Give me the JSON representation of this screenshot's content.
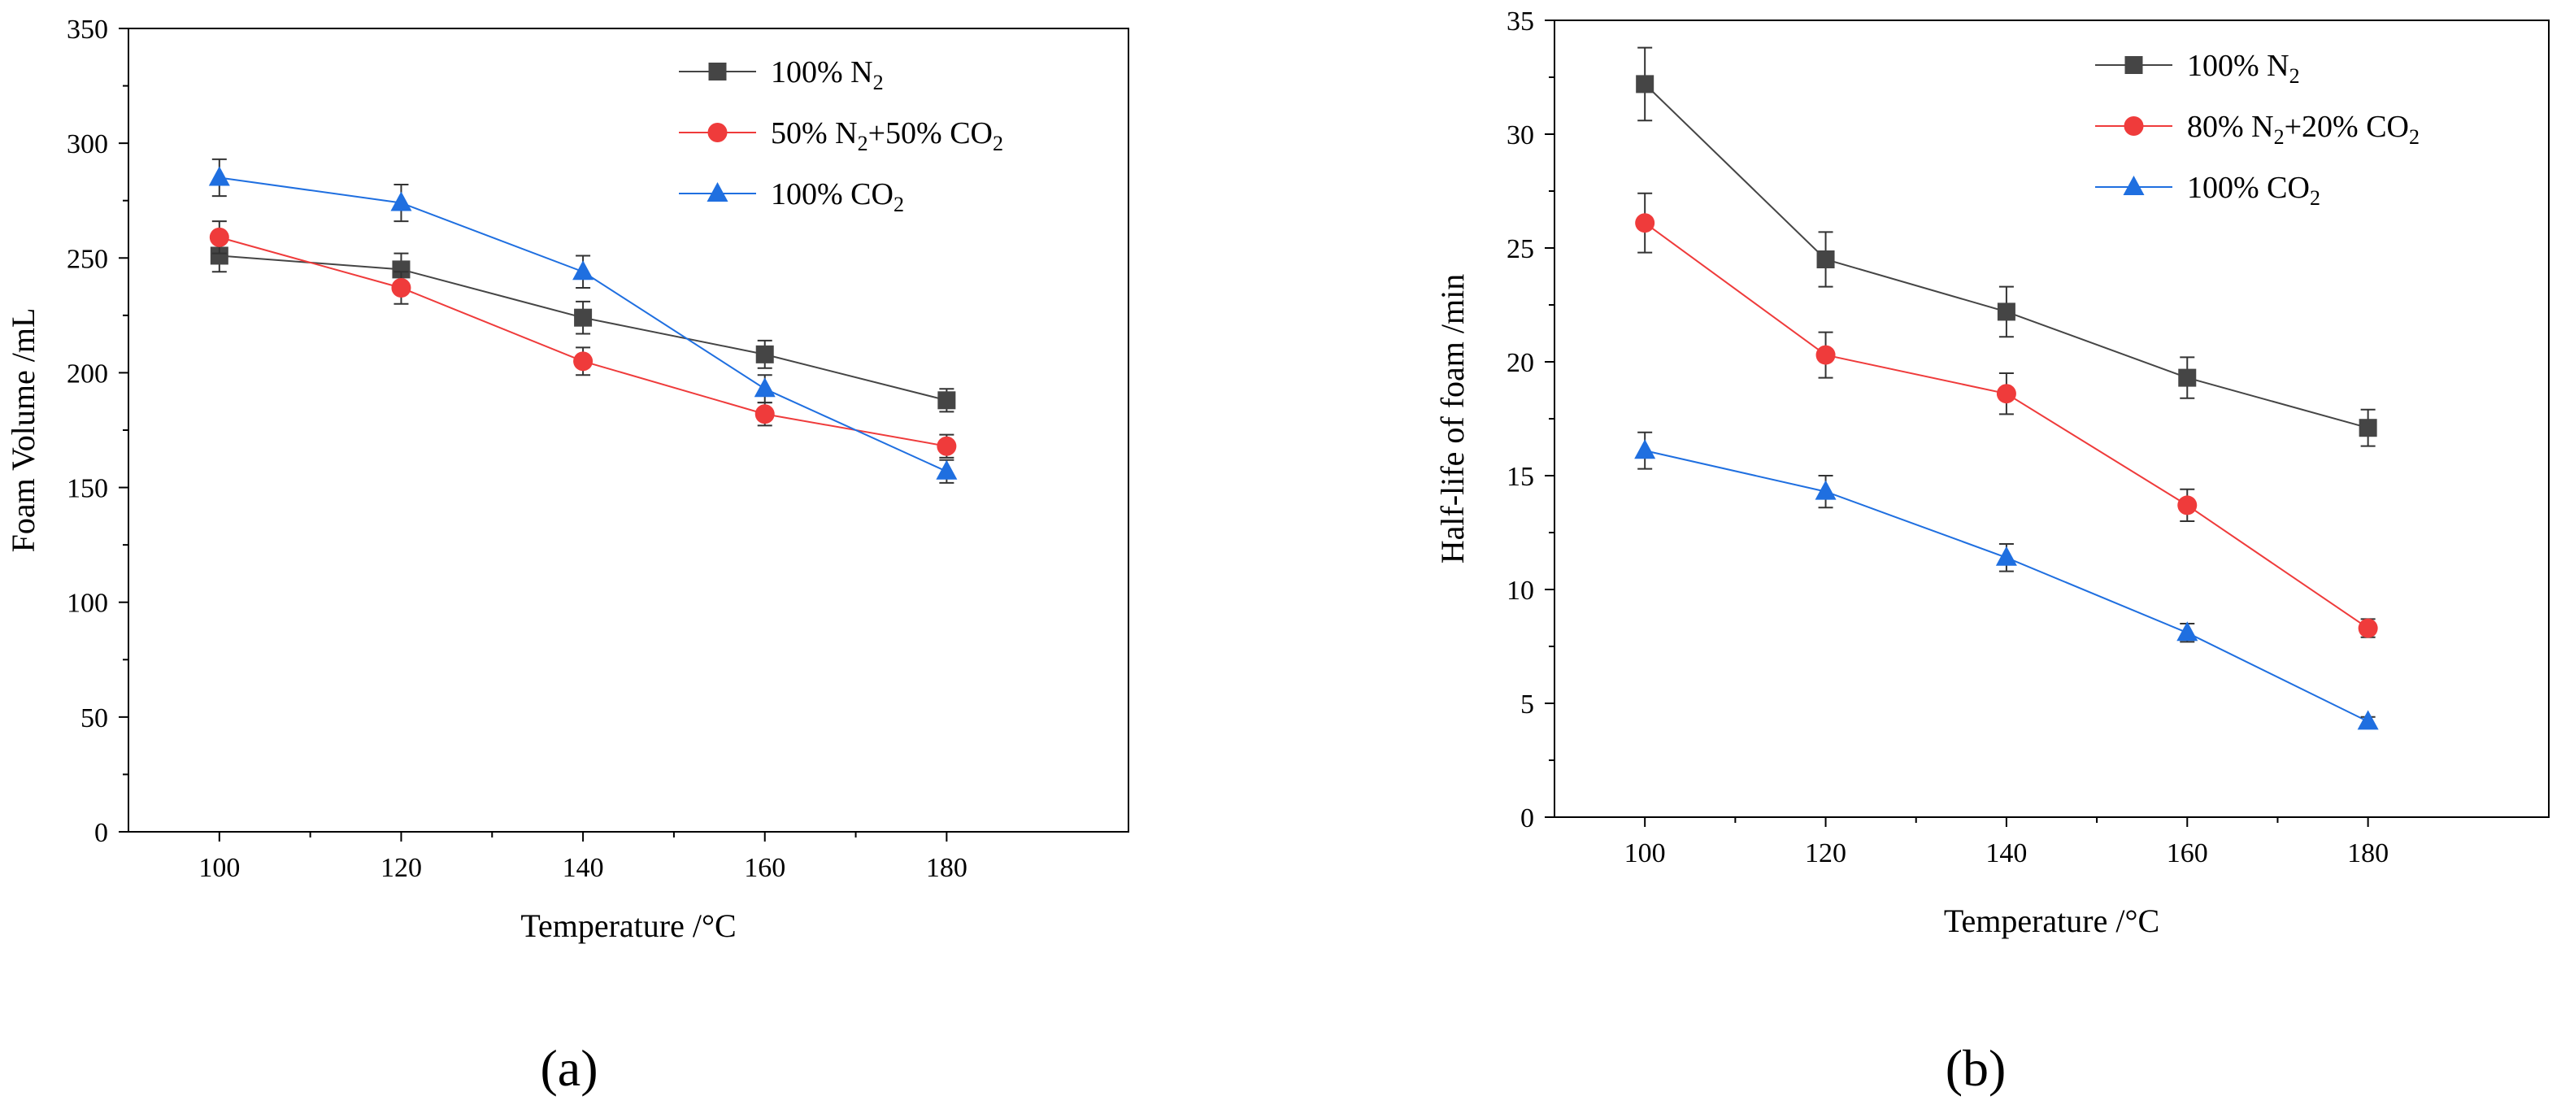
{
  "figure": {
    "panels": [
      {
        "label": "(a)"
      },
      {
        "label": "(b)"
      }
    ]
  },
  "chart_data": [
    {
      "type": "line",
      "panel": "(a)",
      "title": "",
      "xlabel": "Temperature /°C",
      "ylabel": "Foam Volume /mL",
      "xlim": [
        90,
        200
      ],
      "ylim": [
        0,
        350
      ],
      "xticks": [
        100,
        120,
        140,
        160,
        180
      ],
      "yticks": [
        0,
        50,
        100,
        150,
        200,
        250,
        300,
        350
      ],
      "x": [
        100,
        120,
        140,
        160,
        180
      ],
      "legend_position": "top-right",
      "series": [
        {
          "name": "100% N₂",
          "label_parts": [
            [
              "100% N",
              "normal"
            ],
            [
              "2",
              "sub"
            ]
          ],
          "color": "#454545",
          "marker": "square",
          "values": [
            251,
            245,
            224,
            208,
            188
          ],
          "errors": [
            7,
            7,
            7,
            6,
            5
          ]
        },
        {
          "name": "50% N₂+50% CO₂",
          "label_parts": [
            [
              "50% N",
              "normal"
            ],
            [
              "2",
              "sub"
            ],
            [
              "+50% CO",
              "normal"
            ],
            [
              "2",
              "sub"
            ]
          ],
          "color": "#ef3b3b",
          "marker": "circle",
          "values": [
            259,
            237,
            205,
            182,
            168
          ],
          "errors": [
            7,
            7,
            6,
            5,
            5
          ]
        },
        {
          "name": "100% CO₂",
          "label_parts": [
            [
              "100% CO",
              "normal"
            ],
            [
              "2",
              "sub"
            ]
          ],
          "color": "#1f6fe0",
          "marker": "triangle",
          "values": [
            285,
            274,
            244,
            193,
            157
          ],
          "errors": [
            8,
            8,
            7,
            6,
            5
          ]
        }
      ]
    },
    {
      "type": "line",
      "panel": "(b)",
      "title": "",
      "xlabel": "Temperature /°C",
      "ylabel": "Half-life of foam /min",
      "xlim": [
        90,
        200
      ],
      "ylim": [
        0,
        35
      ],
      "xticks": [
        100,
        120,
        140,
        160,
        180
      ],
      "yticks": [
        0,
        5,
        10,
        15,
        20,
        25,
        30,
        35
      ],
      "x": [
        100,
        120,
        140,
        160,
        180
      ],
      "legend_position": "top-right",
      "series": [
        {
          "name": "100% N₂",
          "label_parts": [
            [
              "100% N",
              "normal"
            ],
            [
              "2",
              "sub"
            ]
          ],
          "color": "#454545",
          "marker": "square",
          "values": [
            32.2,
            24.5,
            22.2,
            19.3,
            17.1
          ],
          "errors": [
            1.6,
            1.2,
            1.1,
            0.9,
            0.8
          ]
        },
        {
          "name": "80% N₂+20% CO₂",
          "label_parts": [
            [
              "80% N",
              "normal"
            ],
            [
              "2",
              "sub"
            ],
            [
              "+20% CO",
              "normal"
            ],
            [
              "2",
              "sub"
            ]
          ],
          "color": "#ef3b3b",
          "marker": "circle",
          "values": [
            26.1,
            20.3,
            18.6,
            13.7,
            8.3
          ],
          "errors": [
            1.3,
            1.0,
            0.9,
            0.7,
            0.4
          ]
        },
        {
          "name": "100% CO₂",
          "label_parts": [
            [
              "100% CO",
              "normal"
            ],
            [
              "2",
              "sub"
            ]
          ],
          "color": "#1f6fe0",
          "marker": "triangle",
          "values": [
            16.1,
            14.3,
            11.4,
            8.1,
            4.2
          ],
          "errors": [
            0.8,
            0.7,
            0.6,
            0.4,
            0.2
          ]
        }
      ]
    }
  ]
}
